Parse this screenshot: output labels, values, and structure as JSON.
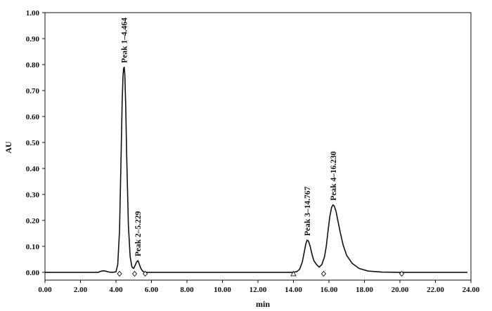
{
  "chart_data": {
    "type": "line",
    "title": "",
    "xlabel": "min",
    "ylabel": "AU",
    "xlim": [
      0,
      24.0
    ],
    "ylim": [
      -0.03,
      1.0
    ],
    "xticks": [
      "0.00",
      "2.00",
      "4.00",
      "6.00",
      "8.00",
      "10.00",
      "12.00",
      "14.00",
      "16.00",
      "18.00",
      "20.00",
      "22.00",
      "24.00"
    ],
    "yticks": [
      "0.00",
      "0.10",
      "0.20",
      "0.30",
      "0.40",
      "0.50",
      "0.60",
      "0.70",
      "0.80",
      "0.90",
      "1.00"
    ],
    "grid": false,
    "line_color": "#111111",
    "series": [
      {
        "x": [
          0.0,
          3.0,
          3.15,
          3.3,
          3.45,
          3.6,
          3.8,
          4.0,
          4.1,
          4.2,
          4.28,
          4.35,
          4.4,
          4.43,
          4.464,
          4.5,
          4.55,
          4.6,
          4.7,
          4.8,
          4.9,
          5.0,
          5.1,
          5.15,
          5.2,
          5.229,
          5.26,
          5.32,
          5.4,
          5.5,
          5.6,
          5.8,
          6.0,
          8.0,
          12.0,
          14.0,
          14.2,
          14.35,
          14.5,
          14.6,
          14.7,
          14.767,
          14.85,
          14.95,
          15.05,
          15.15,
          15.3,
          15.45,
          15.6,
          15.75,
          15.85,
          15.95,
          16.05,
          16.15,
          16.23,
          16.3,
          16.4,
          16.5,
          16.65,
          16.8,
          17.0,
          17.3,
          17.7,
          18.2,
          19.0,
          20.0,
          23.8
        ],
        "y": [
          0.0,
          0.0,
          0.004,
          0.006,
          0.004,
          0.001,
          0.0,
          0.002,
          0.03,
          0.16,
          0.42,
          0.66,
          0.76,
          0.785,
          0.79,
          0.76,
          0.64,
          0.46,
          0.18,
          0.06,
          0.02,
          0.015,
          0.03,
          0.038,
          0.043,
          0.045,
          0.042,
          0.03,
          0.015,
          0.005,
          0.0,
          0.0,
          0.0,
          0.0,
          0.0,
          0.0,
          0.003,
          0.012,
          0.04,
          0.075,
          0.11,
          0.124,
          0.12,
          0.098,
          0.068,
          0.045,
          0.03,
          0.02,
          0.03,
          0.06,
          0.1,
          0.16,
          0.215,
          0.25,
          0.26,
          0.255,
          0.235,
          0.2,
          0.15,
          0.105,
          0.065,
          0.035,
          0.015,
          0.005,
          0.001,
          0.0,
          0.0
        ]
      }
    ],
    "peaks": [
      {
        "label": "Peak 1–4.464",
        "x": 4.464,
        "y": 0.79
      },
      {
        "label": "Peak 2–5.229",
        "x": 5.229,
        "y": 0.045
      },
      {
        "label": "Peak 3–14.767",
        "x": 14.767,
        "y": 0.124
      },
      {
        "label": "Peak 4–16.230",
        "x": 16.23,
        "y": 0.26
      }
    ],
    "markers": [
      {
        "x": 4.2,
        "shape": "diamond"
      },
      {
        "x": 5.05,
        "shape": "diamond"
      },
      {
        "x": 5.65,
        "shape": "diamond"
      },
      {
        "x": 14.0,
        "shape": "triangle"
      },
      {
        "x": 15.7,
        "shape": "diamond"
      },
      {
        "x": 20.1,
        "shape": "diamond"
      }
    ]
  }
}
